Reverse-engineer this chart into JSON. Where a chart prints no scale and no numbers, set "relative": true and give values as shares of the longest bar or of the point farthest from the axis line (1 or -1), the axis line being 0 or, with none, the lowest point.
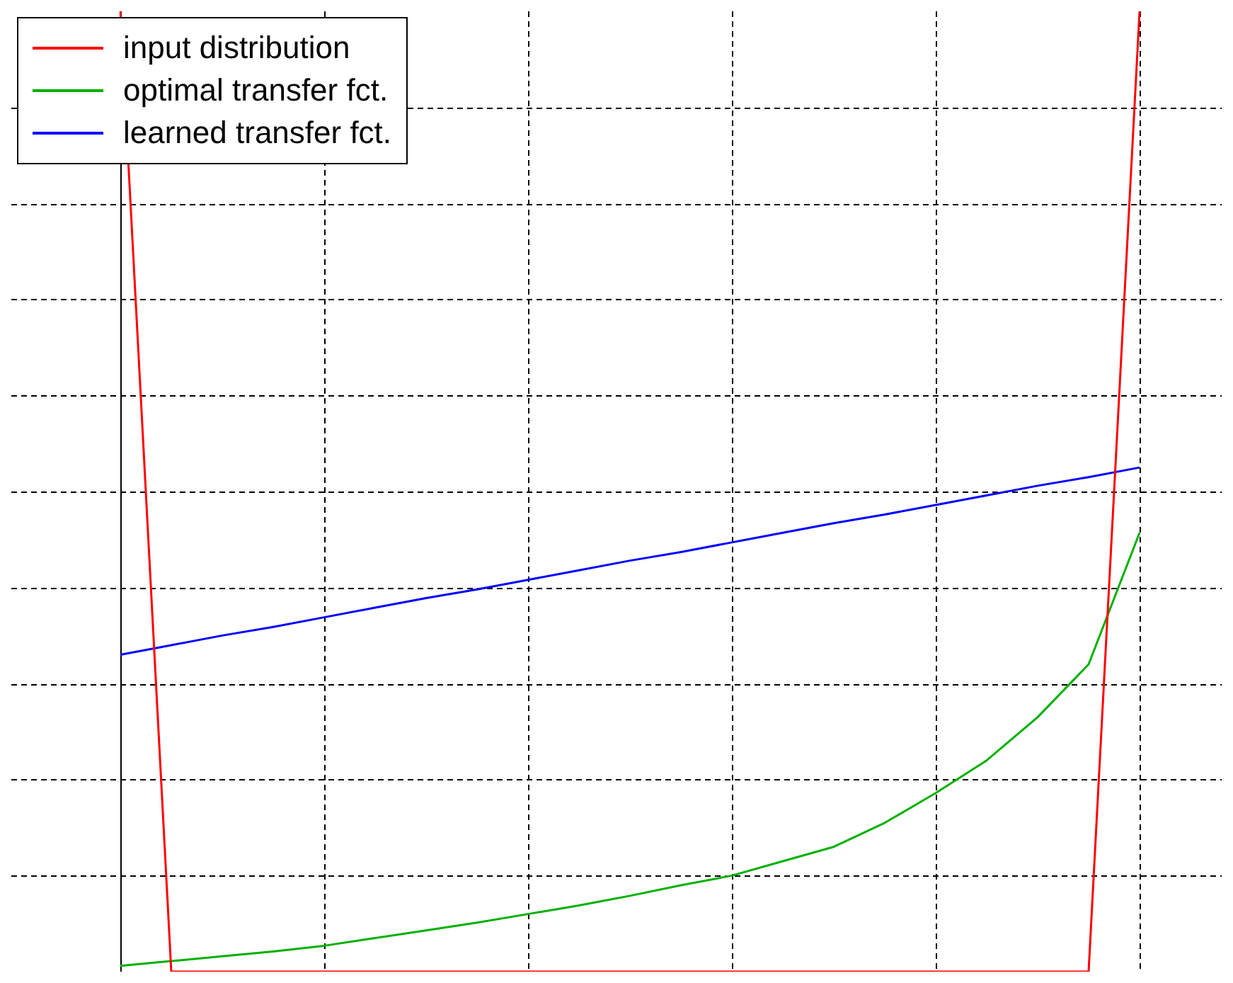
{
  "chart_data": {
    "type": "line",
    "relative": true,
    "grid": true,
    "legend": "top left",
    "line_style": "solid",
    "marker": "none",
    "categories": [
      null,
      null,
      null,
      null,
      null,
      null,
      null,
      null,
      null,
      null,
      null,
      null,
      null,
      null,
      null,
      null,
      null,
      null,
      null,
      null,
      null
    ],
    "series": [
      {
        "name": "input distribution",
        "color": "#ff0000",
        "values": [
          1,
          0,
          0,
          0,
          0,
          0,
          0,
          0,
          0,
          0,
          0,
          0,
          0,
          0,
          0,
          0,
          0,
          0,
          0,
          0,
          1
        ]
      },
      {
        "name": "optimal transfer fct.",
        "color": "#00b000",
        "values": [
          0.006,
          0.011,
          0.016,
          0.021,
          0.027,
          0.035,
          0.043,
          0.051,
          0.06,
          0.069,
          0.079,
          0.09,
          0.1,
          0.115,
          0.13,
          0.155,
          0.186,
          0.22,
          0.265,
          0.32,
          0.457
        ]
      },
      {
        "name": "learned transfer fct.",
        "color": "#0000ff",
        "values": [
          0.33,
          0.34,
          0.35,
          0.359,
          0.369,
          0.379,
          0.389,
          0.398,
          0.408,
          0.418,
          0.428,
          0.437,
          0.447,
          0.457,
          0.467,
          0.476,
          0.486,
          0.496,
          0.506,
          0.515,
          0.525
        ]
      }
    ]
  }
}
